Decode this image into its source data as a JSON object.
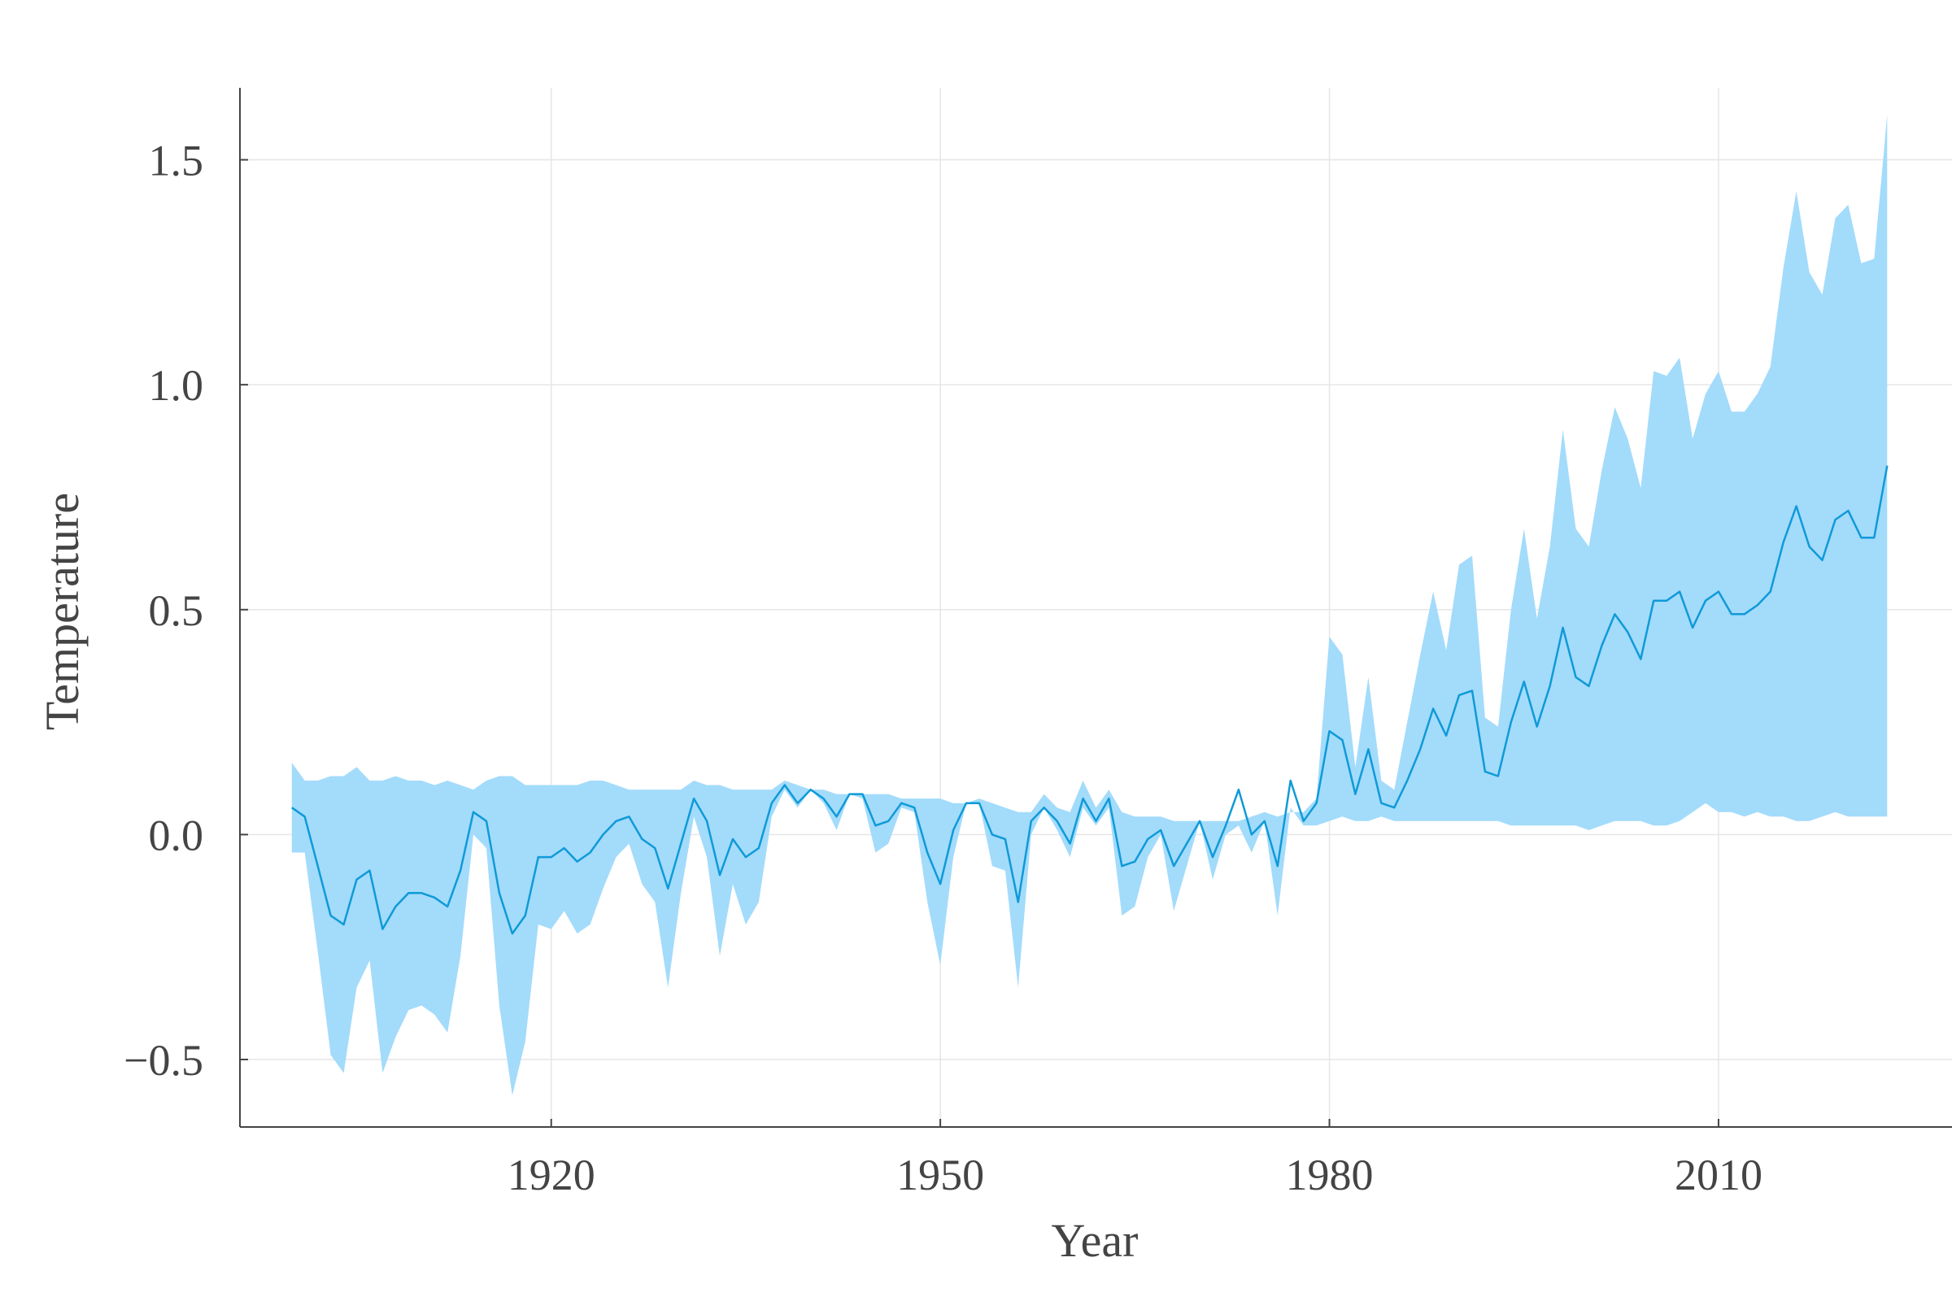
{
  "chart_data": {
    "type": "area",
    "xlabel": "Year",
    "ylabel": "Temperature",
    "xlim": [
      1896,
      2028
    ],
    "ylim": [
      -0.65,
      1.66
    ],
    "xticks": [
      1920,
      1950,
      1980,
      2010
    ],
    "yticks": [
      -0.5,
      0.0,
      0.5,
      1.0,
      1.5
    ],
    "xtick_labels": [
      "1920",
      "1950",
      "1980",
      "2010"
    ],
    "ytick_labels": [
      "−0.5",
      "0.0",
      "0.5",
      "1.0",
      "1.5"
    ],
    "grid": true,
    "colors": {
      "band": "#a3dbfb",
      "line": "#0f9ad8",
      "axis": "#444444",
      "grid": "#e6e6e6"
    },
    "x": [
      1900,
      1901,
      1902,
      1903,
      1904,
      1905,
      1906,
      1907,
      1908,
      1909,
      1910,
      1911,
      1912,
      1913,
      1914,
      1915,
      1916,
      1917,
      1918,
      1919,
      1920,
      1921,
      1922,
      1923,
      1924,
      1925,
      1926,
      1927,
      1928,
      1929,
      1930,
      1931,
      1932,
      1933,
      1934,
      1935,
      1936,
      1937,
      1938,
      1939,
      1940,
      1941,
      1942,
      1943,
      1944,
      1945,
      1946,
      1947,
      1948,
      1949,
      1950,
      1951,
      1952,
      1953,
      1954,
      1955,
      1956,
      1957,
      1958,
      1959,
      1960,
      1961,
      1962,
      1963,
      1964,
      1965,
      1966,
      1967,
      1968,
      1969,
      1970,
      1971,
      1972,
      1973,
      1974,
      1975,
      1976,
      1977,
      1978,
      1979,
      1980,
      1981,
      1982,
      1983,
      1984,
      1985,
      1986,
      1987,
      1988,
      1989,
      1990,
      1991,
      1992,
      1993,
      1994,
      1995,
      1996,
      1997,
      1998,
      1999,
      2000,
      2001,
      2002,
      2003,
      2004,
      2005,
      2006,
      2007,
      2008,
      2009,
      2010,
      2011,
      2012,
      2013,
      2014,
      2015,
      2016,
      2017,
      2018,
      2019,
      2020,
      2021,
      2022,
      2023
    ],
    "series": [
      {
        "role": "mean",
        "values": [
          0.06,
          0.04,
          -0.07,
          -0.18,
          -0.2,
          -0.1,
          -0.08,
          -0.21,
          -0.16,
          -0.13,
          -0.13,
          -0.14,
          -0.16,
          -0.08,
          0.05,
          0.03,
          -0.13,
          -0.22,
          -0.18,
          -0.05,
          -0.05,
          -0.03,
          -0.06,
          -0.04,
          0.0,
          0.03,
          0.04,
          -0.01,
          -0.03,
          -0.12,
          -0.02,
          0.08,
          0.03,
          -0.09,
          -0.01,
          -0.05,
          -0.03,
          0.07,
          0.11,
          0.07,
          0.1,
          0.08,
          0.04,
          0.09,
          0.09,
          0.02,
          0.03,
          0.07,
          0.06,
          -0.04,
          -0.11,
          0.01,
          0.07,
          0.07,
          0.0,
          -0.01,
          -0.15,
          0.03,
          0.06,
          0.03,
          -0.02,
          0.08,
          0.03,
          0.08,
          -0.07,
          -0.06,
          -0.01,
          0.01,
          -0.07,
          -0.02,
          0.03,
          -0.05,
          0.02,
          0.1,
          0.0,
          0.03,
          -0.07,
          0.12,
          0.03,
          0.07,
          0.23,
          0.21,
          0.09,
          0.19,
          0.07,
          0.06,
          0.12,
          0.19,
          0.28,
          0.22,
          0.31,
          0.32,
          0.14,
          0.13,
          0.25,
          0.34,
          0.24,
          0.33,
          0.46,
          0.35,
          0.33,
          0.42,
          0.49,
          0.45,
          0.39,
          0.52,
          0.52,
          0.54,
          0.46,
          0.52,
          0.54,
          0.49,
          0.49,
          0.51,
          0.54,
          0.65,
          0.73,
          0.64,
          0.61,
          0.7,
          0.72,
          0.66,
          0.66,
          0.82
        ]
      },
      {
        "role": "upper",
        "values": [
          0.16,
          0.12,
          0.12,
          0.13,
          0.13,
          0.15,
          0.12,
          0.12,
          0.13,
          0.12,
          0.12,
          0.11,
          0.12,
          0.11,
          0.1,
          0.12,
          0.13,
          0.13,
          0.11,
          0.11,
          0.11,
          0.11,
          0.11,
          0.12,
          0.12,
          0.11,
          0.1,
          0.1,
          0.1,
          0.1,
          0.1,
          0.12,
          0.11,
          0.11,
          0.1,
          0.1,
          0.1,
          0.1,
          0.12,
          0.11,
          0.1,
          0.1,
          0.09,
          0.09,
          0.09,
          0.09,
          0.09,
          0.08,
          0.08,
          0.08,
          0.08,
          0.07,
          0.07,
          0.08,
          0.07,
          0.06,
          0.05,
          0.05,
          0.09,
          0.06,
          0.05,
          0.12,
          0.06,
          0.1,
          0.05,
          0.04,
          0.04,
          0.04,
          0.03,
          0.03,
          0.03,
          0.03,
          0.03,
          0.03,
          0.04,
          0.05,
          0.04,
          0.05,
          0.05,
          0.08,
          0.44,
          0.4,
          0.15,
          0.35,
          0.12,
          0.1,
          0.25,
          0.4,
          0.54,
          0.41,
          0.6,
          0.62,
          0.26,
          0.24,
          0.5,
          0.68,
          0.48,
          0.64,
          0.9,
          0.68,
          0.64,
          0.81,
          0.95,
          0.88,
          0.77,
          1.03,
          1.02,
          1.06,
          0.88,
          0.98,
          1.03,
          0.94,
          0.94,
          0.98,
          1.04,
          1.26,
          1.43,
          1.25,
          1.2,
          1.37,
          1.4,
          1.27,
          1.28,
          1.6
        ]
      },
      {
        "role": "lower",
        "values": [
          -0.04,
          -0.04,
          -0.26,
          -0.49,
          -0.53,
          -0.34,
          -0.28,
          -0.53,
          -0.45,
          -0.39,
          -0.38,
          -0.4,
          -0.44,
          -0.27,
          0.0,
          -0.03,
          -0.38,
          -0.58,
          -0.46,
          -0.2,
          -0.21,
          -0.17,
          -0.22,
          -0.2,
          -0.12,
          -0.05,
          -0.02,
          -0.11,
          -0.15,
          -0.34,
          -0.13,
          0.04,
          -0.05,
          -0.27,
          -0.11,
          -0.2,
          -0.15,
          0.04,
          0.1,
          0.06,
          0.1,
          0.07,
          0.01,
          0.09,
          0.08,
          -0.04,
          -0.02,
          0.06,
          0.05,
          -0.15,
          -0.29,
          -0.05,
          0.07,
          0.07,
          -0.07,
          -0.08,
          -0.34,
          0.0,
          0.06,
          0.01,
          -0.05,
          0.06,
          0.02,
          0.06,
          -0.18,
          -0.16,
          -0.05,
          0.0,
          -0.17,
          -0.07,
          0.03,
          -0.1,
          0.0,
          0.02,
          -0.04,
          0.03,
          -0.18,
          0.06,
          0.02,
          0.02,
          0.03,
          0.04,
          0.03,
          0.03,
          0.04,
          0.03,
          0.03,
          0.03,
          0.03,
          0.03,
          0.03,
          0.03,
          0.03,
          0.03,
          0.02,
          0.02,
          0.02,
          0.02,
          0.02,
          0.02,
          0.01,
          0.02,
          0.03,
          0.03,
          0.03,
          0.02,
          0.02,
          0.03,
          0.05,
          0.07,
          0.05,
          0.05,
          0.04,
          0.05,
          0.04,
          0.04,
          0.03,
          0.03,
          0.04,
          0.05,
          0.04,
          0.04,
          0.04,
          0.04
        ]
      }
    ]
  }
}
